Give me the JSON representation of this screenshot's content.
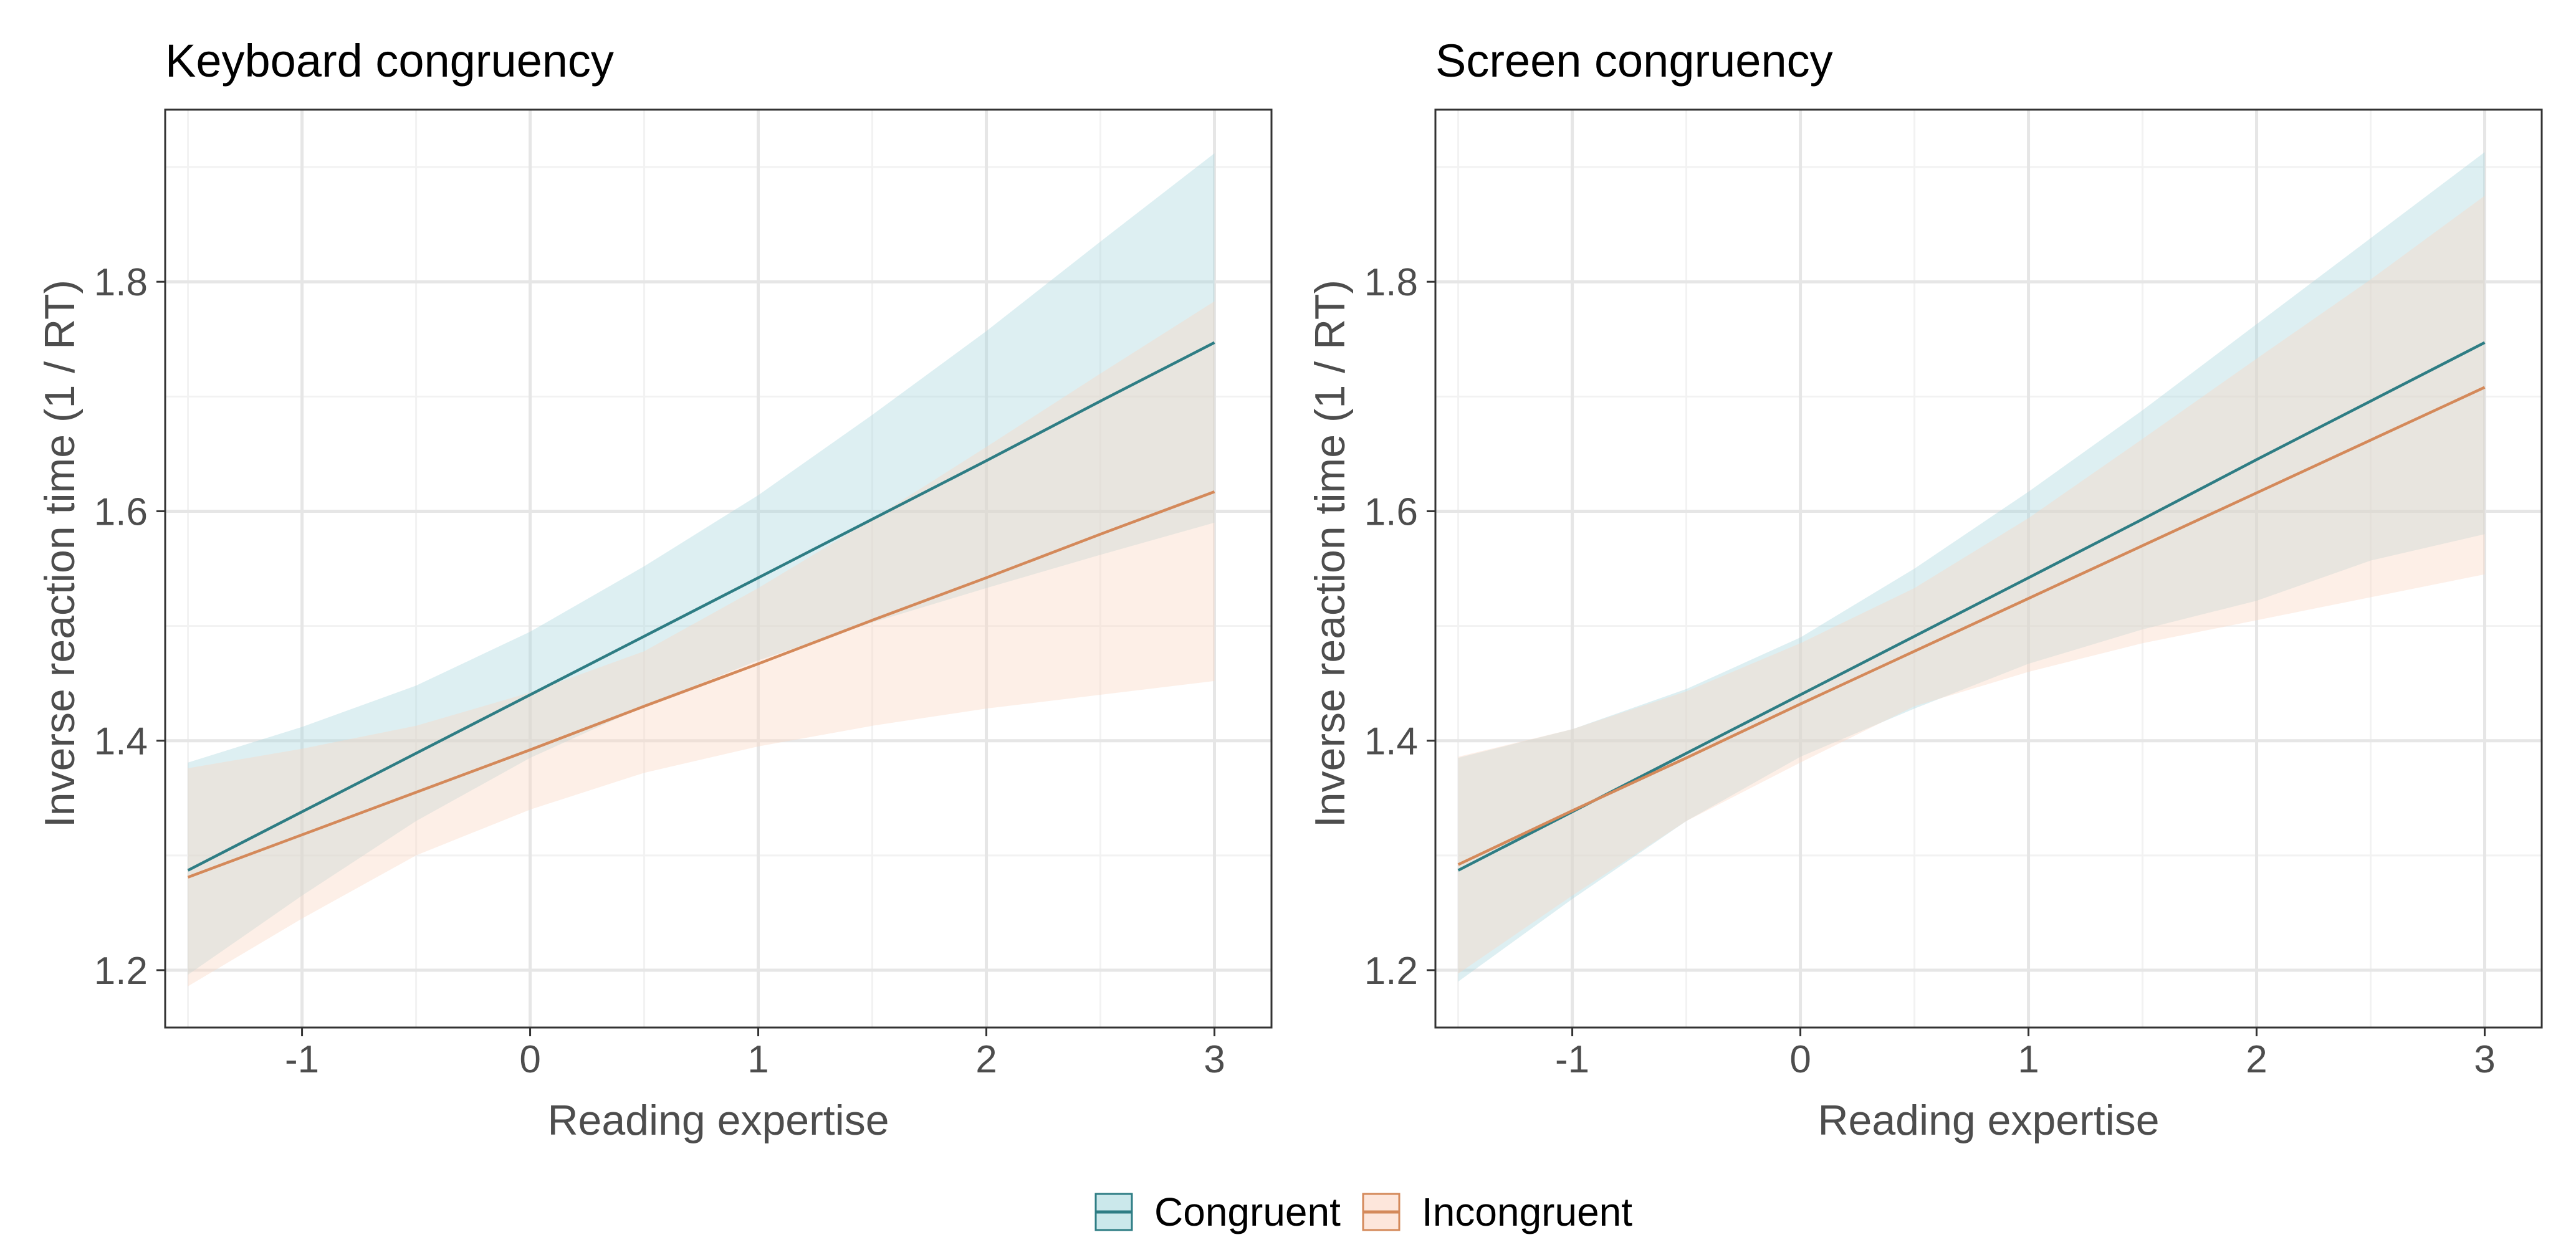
{
  "colors": {
    "congruent_line": "#2e7d84",
    "congruent_fill": "#a9d8de",
    "incongruent_line": "#d4895a",
    "incongruent_fill": "#fbd6c3",
    "grid_major": "#e6e6e6",
    "grid_minor": "#f2f2f2",
    "panel_border": "#333333"
  },
  "legend": {
    "position": "bottom",
    "items": [
      {
        "key": "congruent",
        "label": "Congruent"
      },
      {
        "key": "incongruent",
        "label": "Incongruent"
      }
    ]
  },
  "chart_data": [
    {
      "type": "line",
      "title": "Keyboard congruency",
      "xlabel": "Reading expertise",
      "ylabel": "Inverse reaction time (1 / RT)",
      "xlim": [
        -1.6,
        3.25
      ],
      "ylim": [
        1.15,
        1.95
      ],
      "xticks": [
        -1,
        0,
        1,
        2,
        3
      ],
      "yticks": [
        1.2,
        1.4,
        1.6,
        1.8
      ],
      "grid": true,
      "x": [
        -1.5,
        -1,
        -0.5,
        0,
        0.5,
        1,
        1.5,
        2,
        2.5,
        3
      ],
      "series": [
        {
          "key": "congruent",
          "name": "Congruent",
          "values": [
            1.287,
            1.338,
            1.389,
            1.44,
            1.491,
            1.542,
            1.593,
            1.644,
            1.696,
            1.747
          ],
          "lower": [
            1.196,
            1.265,
            1.33,
            1.385,
            1.43,
            1.47,
            1.503,
            1.533,
            1.562,
            1.59
          ],
          "upper": [
            1.381,
            1.412,
            1.448,
            1.495,
            1.552,
            1.614,
            1.684,
            1.757,
            1.835,
            1.912
          ]
        },
        {
          "key": "incongruent",
          "name": "Incongruent",
          "values": [
            1.281,
            1.318,
            1.355,
            1.392,
            1.43,
            1.467,
            1.505,
            1.542,
            1.58,
            1.617
          ],
          "lower": [
            1.186,
            1.245,
            1.3,
            1.34,
            1.372,
            1.395,
            1.413,
            1.428,
            1.44,
            1.452
          ],
          "upper": [
            1.376,
            1.393,
            1.413,
            1.442,
            1.478,
            1.533,
            1.593,
            1.656,
            1.72,
            1.783
          ]
        }
      ]
    },
    {
      "type": "line",
      "title": "Screen congruency",
      "xlabel": "Reading expertise",
      "ylabel": "Inverse reaction time (1 / RT)",
      "xlim": [
        -1.6,
        3.25
      ],
      "ylim": [
        1.15,
        1.95
      ],
      "xticks": [
        -1,
        0,
        1,
        2,
        3
      ],
      "yticks": [
        1.2,
        1.4,
        1.6,
        1.8
      ],
      "grid": true,
      "x": [
        -1.5,
        -1,
        -0.5,
        0,
        0.5,
        1,
        1.5,
        2,
        2.5,
        3
      ],
      "series": [
        {
          "key": "congruent",
          "name": "Congruent",
          "values": [
            1.287,
            1.338,
            1.389,
            1.44,
            1.491,
            1.542,
            1.593,
            1.645,
            1.696,
            1.747
          ],
          "lower": [
            1.19,
            1.262,
            1.33,
            1.386,
            1.428,
            1.467,
            1.497,
            1.522,
            1.557,
            1.58
          ],
          "upper": [
            1.385,
            1.41,
            1.445,
            1.49,
            1.55,
            1.617,
            1.688,
            1.763,
            1.838,
            1.913
          ]
        },
        {
          "key": "incongruent",
          "name": "Incongruent",
          "values": [
            1.292,
            1.339,
            1.385,
            1.432,
            1.478,
            1.524,
            1.57,
            1.616,
            1.662,
            1.708
          ],
          "lower": [
            1.197,
            1.265,
            1.33,
            1.381,
            1.43,
            1.46,
            1.485,
            1.505,
            1.525,
            1.545
          ],
          "upper": [
            1.386,
            1.41,
            1.443,
            1.485,
            1.533,
            1.594,
            1.663,
            1.733,
            1.802,
            1.875
          ]
        }
      ]
    }
  ]
}
